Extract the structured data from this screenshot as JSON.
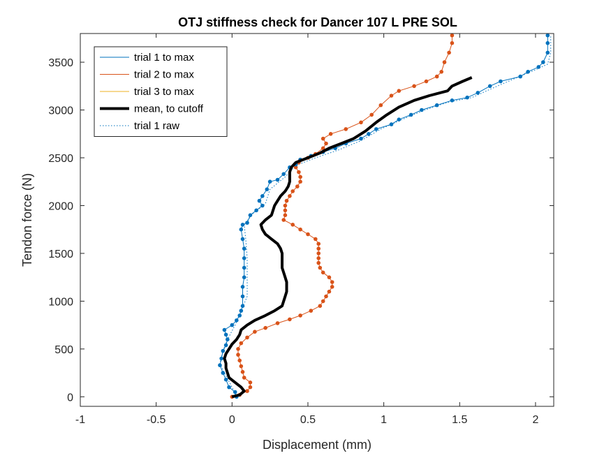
{
  "chart_data": {
    "type": "line",
    "title": "OTJ stiffness check for Dancer 107 L PRE SOL",
    "xlabel": "Displacement (mm)",
    "ylabel": "Tendon force (N)",
    "xlim": [
      -1,
      2.12
    ],
    "ylim": [
      -100,
      3800
    ],
    "xticks": [
      -1,
      -0.5,
      0,
      0.5,
      1,
      1.5,
      2
    ],
    "xtick_labels": [
      "-1",
      "-0.5",
      "0",
      "0.5",
      "1",
      "1.5",
      "2"
    ],
    "yticks": [
      0,
      500,
      1000,
      1500,
      2000,
      2500,
      3000,
      3500
    ],
    "ytick_labels": [
      "0",
      "500",
      "1000",
      "1500",
      "2000",
      "2500",
      "3000",
      "3500"
    ],
    "grid": false,
    "legend_position": "top-left",
    "series": [
      {
        "name": "trial 1 to max",
        "color": "#0072BD",
        "style": "solid-with-markers",
        "points": [
          [
            0.03,
            0
          ],
          [
            0.02,
            50
          ],
          [
            -0.02,
            100
          ],
          [
            -0.04,
            180
          ],
          [
            -0.06,
            250
          ],
          [
            -0.08,
            330
          ],
          [
            -0.07,
            400
          ],
          [
            -0.06,
            480
          ],
          [
            -0.04,
            540
          ],
          [
            -0.03,
            600
          ],
          [
            -0.04,
            650
          ],
          [
            -0.05,
            700
          ],
          [
            0.0,
            750
          ],
          [
            0.03,
            800
          ],
          [
            0.05,
            850
          ],
          [
            0.06,
            900
          ],
          [
            0.07,
            950
          ],
          [
            0.07,
            1050
          ],
          [
            0.07,
            1150
          ],
          [
            0.08,
            1250
          ],
          [
            0.08,
            1350
          ],
          [
            0.08,
            1450
          ],
          [
            0.08,
            1550
          ],
          [
            0.07,
            1650
          ],
          [
            0.06,
            1750
          ],
          [
            0.07,
            1800
          ],
          [
            0.1,
            1820
          ],
          [
            0.12,
            1900
          ],
          [
            0.16,
            1950
          ],
          [
            0.2,
            2000
          ],
          [
            0.18,
            2050
          ],
          [
            0.2,
            2100
          ],
          [
            0.23,
            2170
          ],
          [
            0.25,
            2250
          ],
          [
            0.3,
            2270
          ],
          [
            0.34,
            2330
          ],
          [
            0.38,
            2400
          ],
          [
            0.42,
            2430
          ],
          [
            0.45,
            2480
          ],
          [
            0.52,
            2520
          ],
          [
            0.6,
            2560
          ],
          [
            0.68,
            2600
          ],
          [
            0.75,
            2650
          ],
          [
            0.85,
            2700
          ],
          [
            0.9,
            2750
          ],
          [
            0.95,
            2800
          ],
          [
            1.05,
            2850
          ],
          [
            1.1,
            2900
          ],
          [
            1.18,
            2950
          ],
          [
            1.25,
            3000
          ],
          [
            1.35,
            3050
          ],
          [
            1.45,
            3100
          ],
          [
            1.55,
            3130
          ],
          [
            1.62,
            3180
          ],
          [
            1.7,
            3250
          ],
          [
            1.77,
            3300
          ],
          [
            1.9,
            3350
          ],
          [
            1.95,
            3400
          ],
          [
            2.02,
            3450
          ],
          [
            2.05,
            3500
          ],
          [
            2.08,
            3600
          ],
          [
            2.08,
            3700
          ],
          [
            2.08,
            3780
          ]
        ]
      },
      {
        "name": "trial 2 to max",
        "color": "#D95319",
        "style": "solid-with-markers",
        "points": [
          [
            0.0,
            0
          ],
          [
            0.05,
            20
          ],
          [
            0.1,
            60
          ],
          [
            0.12,
            100
          ],
          [
            0.12,
            150
          ],
          [
            0.08,
            200
          ],
          [
            0.07,
            260
          ],
          [
            0.06,
            320
          ],
          [
            0.05,
            380
          ],
          [
            0.04,
            440
          ],
          [
            0.04,
            500
          ],
          [
            0.06,
            560
          ],
          [
            0.1,
            620
          ],
          [
            0.15,
            680
          ],
          [
            0.22,
            720
          ],
          [
            0.3,
            770
          ],
          [
            0.38,
            810
          ],
          [
            0.45,
            850
          ],
          [
            0.52,
            900
          ],
          [
            0.58,
            950
          ],
          [
            0.6,
            1000
          ],
          [
            0.62,
            1050
          ],
          [
            0.64,
            1100
          ],
          [
            0.66,
            1150
          ],
          [
            0.66,
            1200
          ],
          [
            0.64,
            1250
          ],
          [
            0.6,
            1300
          ],
          [
            0.58,
            1350
          ],
          [
            0.57,
            1400
          ],
          [
            0.57,
            1450
          ],
          [
            0.57,
            1500
          ],
          [
            0.57,
            1550
          ],
          [
            0.57,
            1600
          ],
          [
            0.55,
            1650
          ],
          [
            0.5,
            1700
          ],
          [
            0.45,
            1750
          ],
          [
            0.4,
            1800
          ],
          [
            0.34,
            1850
          ],
          [
            0.35,
            1900
          ],
          [
            0.35,
            1950
          ],
          [
            0.35,
            2000
          ],
          [
            0.36,
            2050
          ],
          [
            0.38,
            2100
          ],
          [
            0.4,
            2150
          ],
          [
            0.43,
            2200
          ],
          [
            0.45,
            2250
          ],
          [
            0.45,
            2300
          ],
          [
            0.44,
            2350
          ],
          [
            0.42,
            2400
          ],
          [
            0.44,
            2450
          ],
          [
            0.45,
            2480
          ],
          [
            0.5,
            2500
          ],
          [
            0.55,
            2540
          ],
          [
            0.6,
            2600
          ],
          [
            0.62,
            2650
          ],
          [
            0.6,
            2700
          ],
          [
            0.65,
            2750
          ],
          [
            0.75,
            2800
          ],
          [
            0.85,
            2870
          ],
          [
            0.92,
            2950
          ],
          [
            0.98,
            3050
          ],
          [
            1.05,
            3150
          ],
          [
            1.1,
            3200
          ],
          [
            1.2,
            3250
          ],
          [
            1.28,
            3300
          ],
          [
            1.35,
            3350
          ],
          [
            1.38,
            3400
          ],
          [
            1.4,
            3500
          ],
          [
            1.43,
            3600
          ],
          [
            1.45,
            3700
          ],
          [
            1.45,
            3780
          ]
        ]
      },
      {
        "name": "trial 3 to max",
        "color": "#EDB120",
        "style": "solid",
        "points": []
      },
      {
        "name": "mean, to cutoff",
        "color": "#000000",
        "style": "thick",
        "points": [
          [
            0.0,
            0
          ],
          [
            0.05,
            20
          ],
          [
            0.08,
            60
          ],
          [
            0.06,
            100
          ],
          [
            0.02,
            150
          ],
          [
            -0.02,
            200
          ],
          [
            -0.03,
            250
          ],
          [
            -0.04,
            300
          ],
          [
            -0.04,
            350
          ],
          [
            -0.05,
            400
          ],
          [
            -0.04,
            450
          ],
          [
            -0.02,
            500
          ],
          [
            0.0,
            550
          ],
          [
            0.03,
            600
          ],
          [
            0.05,
            650
          ],
          [
            0.06,
            700
          ],
          [
            0.1,
            750
          ],
          [
            0.15,
            800
          ],
          [
            0.22,
            850
          ],
          [
            0.28,
            900
          ],
          [
            0.33,
            950
          ],
          [
            0.34,
            1000
          ],
          [
            0.35,
            1050
          ],
          [
            0.36,
            1100
          ],
          [
            0.36,
            1150
          ],
          [
            0.36,
            1200
          ],
          [
            0.35,
            1250
          ],
          [
            0.34,
            1300
          ],
          [
            0.33,
            1350
          ],
          [
            0.33,
            1400
          ],
          [
            0.33,
            1450
          ],
          [
            0.33,
            1500
          ],
          [
            0.32,
            1550
          ],
          [
            0.3,
            1600
          ],
          [
            0.26,
            1650
          ],
          [
            0.22,
            1700
          ],
          [
            0.2,
            1750
          ],
          [
            0.19,
            1800
          ],
          [
            0.22,
            1850
          ],
          [
            0.26,
            1900
          ],
          [
            0.27,
            1950
          ],
          [
            0.28,
            2000
          ],
          [
            0.3,
            2050
          ],
          [
            0.32,
            2100
          ],
          [
            0.35,
            2150
          ],
          [
            0.37,
            2200
          ],
          [
            0.38,
            2250
          ],
          [
            0.38,
            2300
          ],
          [
            0.38,
            2350
          ],
          [
            0.39,
            2400
          ],
          [
            0.42,
            2450
          ],
          [
            0.5,
            2500
          ],
          [
            0.58,
            2550
          ],
          [
            0.64,
            2600
          ],
          [
            0.72,
            2650
          ],
          [
            0.8,
            2700
          ],
          [
            0.88,
            2780
          ],
          [
            0.95,
            2870
          ],
          [
            1.02,
            2950
          ],
          [
            1.1,
            3030
          ],
          [
            1.2,
            3100
          ],
          [
            1.3,
            3150
          ],
          [
            1.42,
            3200
          ],
          [
            1.45,
            3250
          ],
          [
            1.52,
            3300
          ],
          [
            1.58,
            3340
          ]
        ]
      },
      {
        "name": "trial 1 raw",
        "color": "#0072BD",
        "style": "dotted",
        "points": [
          [
            0.03,
            0
          ],
          [
            0.0,
            100
          ],
          [
            -0.05,
            250
          ],
          [
            -0.08,
            350
          ],
          [
            -0.06,
            480
          ],
          [
            -0.03,
            600
          ],
          [
            0.02,
            750
          ],
          [
            0.06,
            900
          ],
          [
            0.1,
            1050
          ],
          [
            0.1,
            1250
          ],
          [
            0.1,
            1450
          ],
          [
            0.09,
            1650
          ],
          [
            0.08,
            1800
          ],
          [
            0.14,
            1920
          ],
          [
            0.22,
            2020
          ],
          [
            0.25,
            2170
          ],
          [
            0.35,
            2300
          ],
          [
            0.42,
            2420
          ],
          [
            0.55,
            2500
          ],
          [
            0.7,
            2580
          ],
          [
            0.85,
            2680
          ],
          [
            0.98,
            2800
          ],
          [
            1.12,
            2900
          ],
          [
            1.27,
            3000
          ],
          [
            1.42,
            3080
          ],
          [
            1.58,
            3130
          ],
          [
            1.72,
            3230
          ],
          [
            1.85,
            3320
          ],
          [
            2.0,
            3420
          ],
          [
            2.08,
            3480
          ],
          [
            2.1,
            3600
          ],
          [
            2.1,
            3780
          ]
        ]
      }
    ]
  }
}
